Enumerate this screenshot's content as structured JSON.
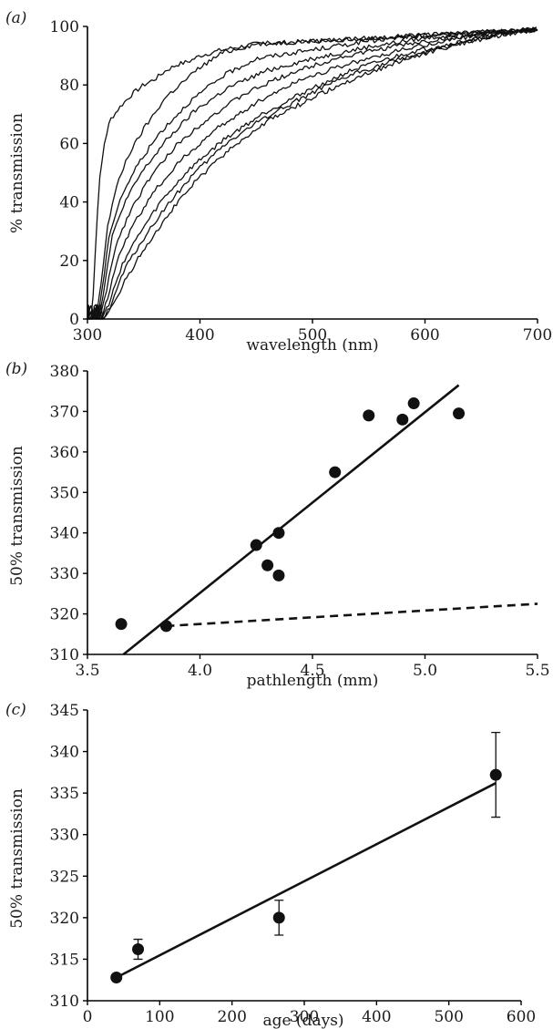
{
  "chart_data": [
    {
      "panel_label": "(a)",
      "type": "line",
      "xlabel": "wavelength (nm)",
      "ylabel": "% transmission",
      "xlim": [
        300,
        700
      ],
      "ylim": [
        0,
        100
      ],
      "xticks": [
        300,
        400,
        500,
        600,
        700
      ],
      "yticks": [
        0,
        20,
        40,
        60,
        80,
        100
      ],
      "grid": false,
      "legend": "none",
      "series": [
        {
          "cutoff": 303,
          "values": [
            [
              303,
              0
            ],
            [
              305,
              8
            ],
            [
              310,
              45
            ],
            [
              315,
              60
            ],
            [
              320,
              68
            ],
            [
              330,
              73
            ],
            [
              340,
              77
            ],
            [
              350,
              80
            ],
            [
              360,
              82
            ],
            [
              370,
              85
            ],
            [
              380,
              87
            ],
            [
              390,
              88
            ],
            [
              400,
              90
            ],
            [
              420,
              92
            ],
            [
              450,
              94
            ],
            [
              500,
              95
            ],
            [
              550,
              96
            ],
            [
              600,
              97
            ],
            [
              650,
              98
            ],
            [
              700,
              99
            ]
          ]
        },
        {
          "cutoff": 308,
          "values": [
            [
              308,
              0
            ],
            [
              312,
              12
            ],
            [
              318,
              32
            ],
            [
              325,
              44
            ],
            [
              335,
              55
            ],
            [
              350,
              65
            ],
            [
              370,
              76
            ],
            [
              400,
              86
            ],
            [
              420,
              91
            ],
            [
              450,
              94
            ],
            [
              500,
              95
            ],
            [
              550,
              96
            ],
            [
              600,
              97
            ],
            [
              650,
              98
            ],
            [
              700,
              99
            ]
          ]
        },
        {
          "cutoff": 309,
          "values": [
            [
              309,
              0
            ],
            [
              313,
              10
            ],
            [
              320,
              30
            ],
            [
              330,
              42
            ],
            [
              345,
              53
            ],
            [
              365,
              64
            ],
            [
              390,
              74
            ],
            [
              420,
              83
            ],
            [
              450,
              89
            ],
            [
              500,
              92
            ],
            [
              550,
              95
            ],
            [
              600,
              97
            ],
            [
              650,
              98
            ],
            [
              700,
              99
            ]
          ]
        },
        {
          "cutoff": 310,
          "values": [
            [
              310,
              0
            ],
            [
              314,
              9
            ],
            [
              322,
              28
            ],
            [
              332,
              39
            ],
            [
              348,
              50
            ],
            [
              370,
              61
            ],
            [
              395,
              71
            ],
            [
              425,
              79
            ],
            [
              460,
              85
            ],
            [
              500,
              89
            ],
            [
              550,
              93
            ],
            [
              600,
              96
            ],
            [
              650,
              98
            ],
            [
              700,
              99
            ]
          ]
        },
        {
          "cutoff": 311,
          "values": [
            [
              311,
              0
            ],
            [
              316,
              8
            ],
            [
              325,
              25
            ],
            [
              338,
              37
            ],
            [
              355,
              48
            ],
            [
              378,
              59
            ],
            [
              405,
              68
            ],
            [
              440,
              77
            ],
            [
              480,
              84
            ],
            [
              520,
              89
            ],
            [
              570,
              93
            ],
            [
              620,
              96
            ],
            [
              670,
              98
            ],
            [
              700,
              99
            ]
          ]
        },
        {
          "cutoff": 312,
          "values": [
            [
              312,
              0
            ],
            [
              318,
              7
            ],
            [
              328,
              22
            ],
            [
              342,
              33
            ],
            [
              360,
              44
            ],
            [
              385,
              55
            ],
            [
              415,
              65
            ],
            [
              450,
              74
            ],
            [
              490,
              82
            ],
            [
              530,
              87
            ],
            [
              580,
              92
            ],
            [
              630,
              96
            ],
            [
              680,
              98
            ],
            [
              700,
              99
            ]
          ]
        },
        {
          "cutoff": 313,
          "values": [
            [
              313,
              0
            ],
            [
              320,
              6
            ],
            [
              331,
              19
            ],
            [
              346,
              29
            ],
            [
              365,
              40
            ],
            [
              390,
              51
            ],
            [
              420,
              61
            ],
            [
              455,
              70
            ],
            [
              495,
              78
            ],
            [
              535,
              85
            ],
            [
              585,
              91
            ],
            [
              635,
              95
            ],
            [
              680,
              98
            ],
            [
              700,
              99
            ]
          ]
        },
        {
          "cutoff": 314,
          "values": [
            [
              314,
              0
            ],
            [
              321,
              5
            ],
            [
              333,
              17
            ],
            [
              349,
              27
            ],
            [
              369,
              38
            ],
            [
              393,
              49
            ],
            [
              423,
              60
            ],
            [
              458,
              69
            ],
            [
              498,
              77
            ],
            [
              538,
              84
            ],
            [
              588,
              90
            ],
            [
              638,
              95
            ],
            [
              682,
              98
            ],
            [
              700,
              99
            ]
          ]
        },
        {
          "cutoff": 315,
          "values": [
            [
              315,
              0
            ],
            [
              323,
              5
            ],
            [
              336,
              15
            ],
            [
              352,
              25
            ],
            [
              372,
              36
            ],
            [
              396,
              47
            ],
            [
              426,
              58
            ],
            [
              462,
              68
            ],
            [
              502,
              76
            ],
            [
              542,
              83
            ],
            [
              592,
              90
            ],
            [
              640,
              95
            ],
            [
              684,
              98
            ],
            [
              700,
              99
            ]
          ]
        }
      ]
    },
    {
      "panel_label": "(b)",
      "type": "scatter",
      "xlabel": "pathlength (mm)",
      "ylabel": "50% transmission",
      "xlim": [
        3.5,
        5.5
      ],
      "ylim": [
        310,
        380
      ],
      "xticks": [
        3.5,
        4.0,
        4.5,
        5.0,
        5.5
      ],
      "yticks": [
        310,
        320,
        330,
        340,
        350,
        360,
        370,
        380
      ],
      "grid": false,
      "legend": "none",
      "points": [
        [
          3.65,
          317.5
        ],
        [
          3.85,
          317
        ],
        [
          4.25,
          337
        ],
        [
          4.3,
          332
        ],
        [
          4.35,
          340
        ],
        [
          4.35,
          329.5
        ],
        [
          4.6,
          355
        ],
        [
          4.75,
          369
        ],
        [
          4.9,
          368
        ],
        [
          4.95,
          372
        ],
        [
          5.15,
          369.5
        ]
      ],
      "fit_line": {
        "style": "solid",
        "from": [
          3.66,
          310
        ],
        "to": [
          5.15,
          376.5
        ]
      },
      "reference_line": {
        "style": "dashed",
        "from": [
          3.85,
          317
        ],
        "to": [
          5.5,
          322.5
        ]
      }
    },
    {
      "panel_label": "(c)",
      "type": "scatter",
      "xlabel": "age (days)",
      "ylabel": "50% transmission",
      "xlim": [
        0,
        600
      ],
      "ylim": [
        310,
        345
      ],
      "xticks": [
        0,
        100,
        200,
        300,
        400,
        500,
        600
      ],
      "yticks": [
        310,
        315,
        320,
        325,
        330,
        335,
        340,
        345
      ],
      "grid": false,
      "legend": "none",
      "points": [
        {
          "x": 40,
          "y": 312.8,
          "err": 0
        },
        {
          "x": 70,
          "y": 316.2,
          "err": 1.2
        },
        {
          "x": 265,
          "y": 320,
          "err": 2.1
        },
        {
          "x": 565,
          "y": 337.2,
          "err": 5.1
        }
      ],
      "fit_line": {
        "style": "solid",
        "from": [
          40,
          312.8
        ],
        "to": [
          565,
          336.2
        ]
      }
    }
  ]
}
